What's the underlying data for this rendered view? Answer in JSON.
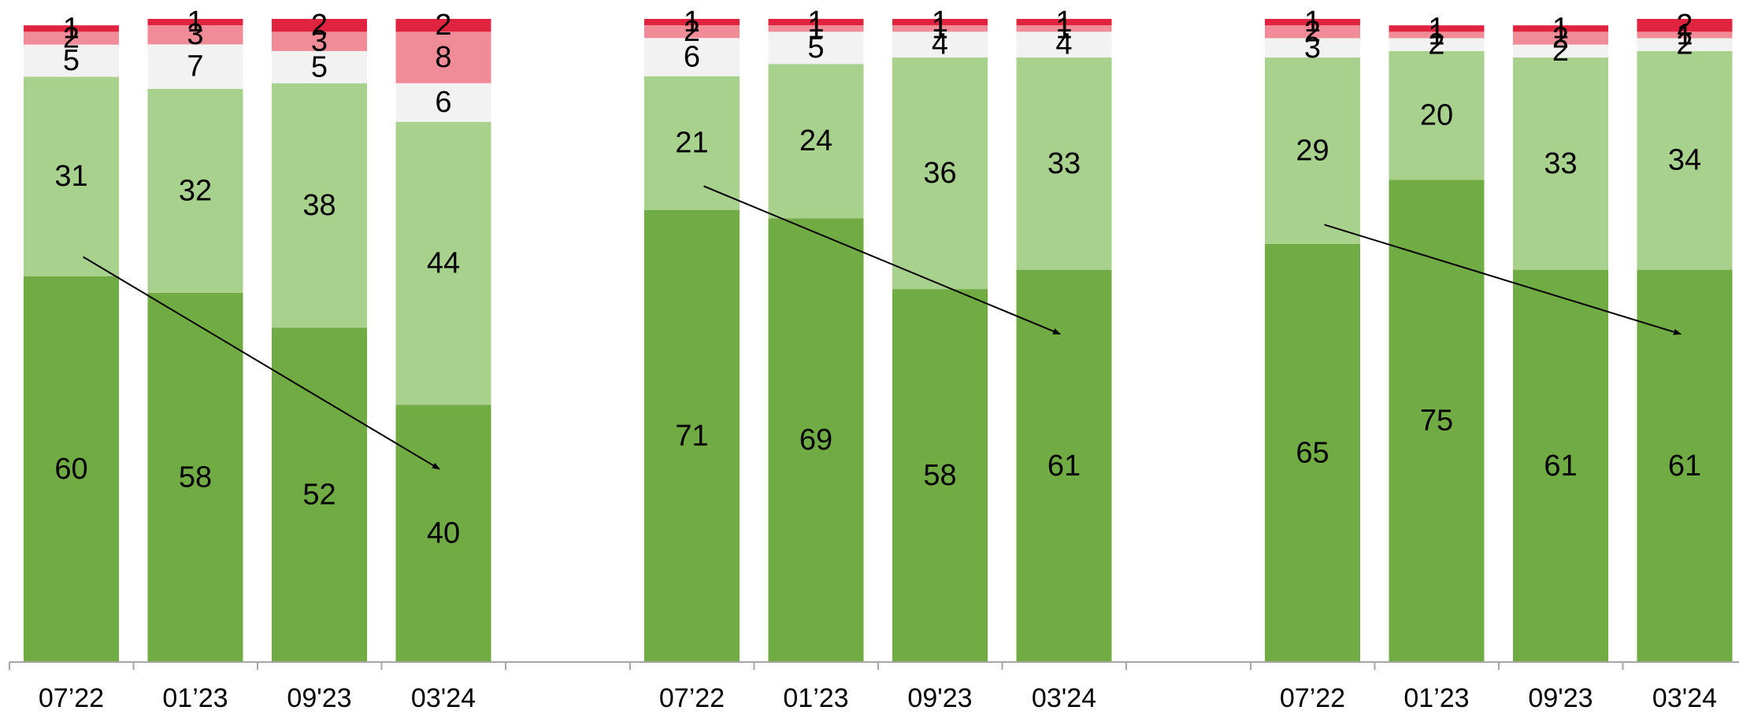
{
  "chart_data": {
    "type": "bar",
    "stacked": true,
    "ylim": [
      0,
      100
    ],
    "grid": false,
    "legend": "none",
    "segment_colors": [
      "#70ab44",
      "#a9d18e",
      "#f2f2f2",
      "#f08b98",
      "#e0243f"
    ],
    "arrow_color": "#000000",
    "groups": [
      {
        "bars": [
          {
            "label": "07’22",
            "values": [
              60,
              31,
              5,
              2,
              1
            ]
          },
          {
            "label": "01’23",
            "values": [
              58,
              32,
              7,
              3,
              1
            ]
          },
          {
            "label": "09'23",
            "values": [
              52,
              38,
              5,
              3,
              2
            ]
          },
          {
            "label": "03'24",
            "values": [
              40,
              44,
              6,
              8,
              2
            ]
          }
        ]
      },
      {
        "bars": [
          {
            "label": "07’22",
            "values": [
              71,
              21,
              6,
              2,
              1
            ]
          },
          {
            "label": "01’23",
            "values": [
              69,
              24,
              5,
              1,
              1
            ]
          },
          {
            "label": "09'23",
            "values": [
              58,
              36,
              4,
              1,
              1
            ]
          },
          {
            "label": "03'24",
            "values": [
              61,
              33,
              4,
              1,
              1
            ]
          }
        ]
      },
      {
        "bars": [
          {
            "label": "07’22",
            "values": [
              65,
              29,
              3,
              2,
              1
            ]
          },
          {
            "label": "01’23",
            "values": [
              75,
              20,
              2,
              1,
              1
            ]
          },
          {
            "label": "09'23",
            "values": [
              61,
              33,
              2,
              2,
              1
            ]
          },
          {
            "label": "03'24",
            "values": [
              61,
              34,
              2,
              1,
              2
            ]
          }
        ]
      }
    ]
  }
}
